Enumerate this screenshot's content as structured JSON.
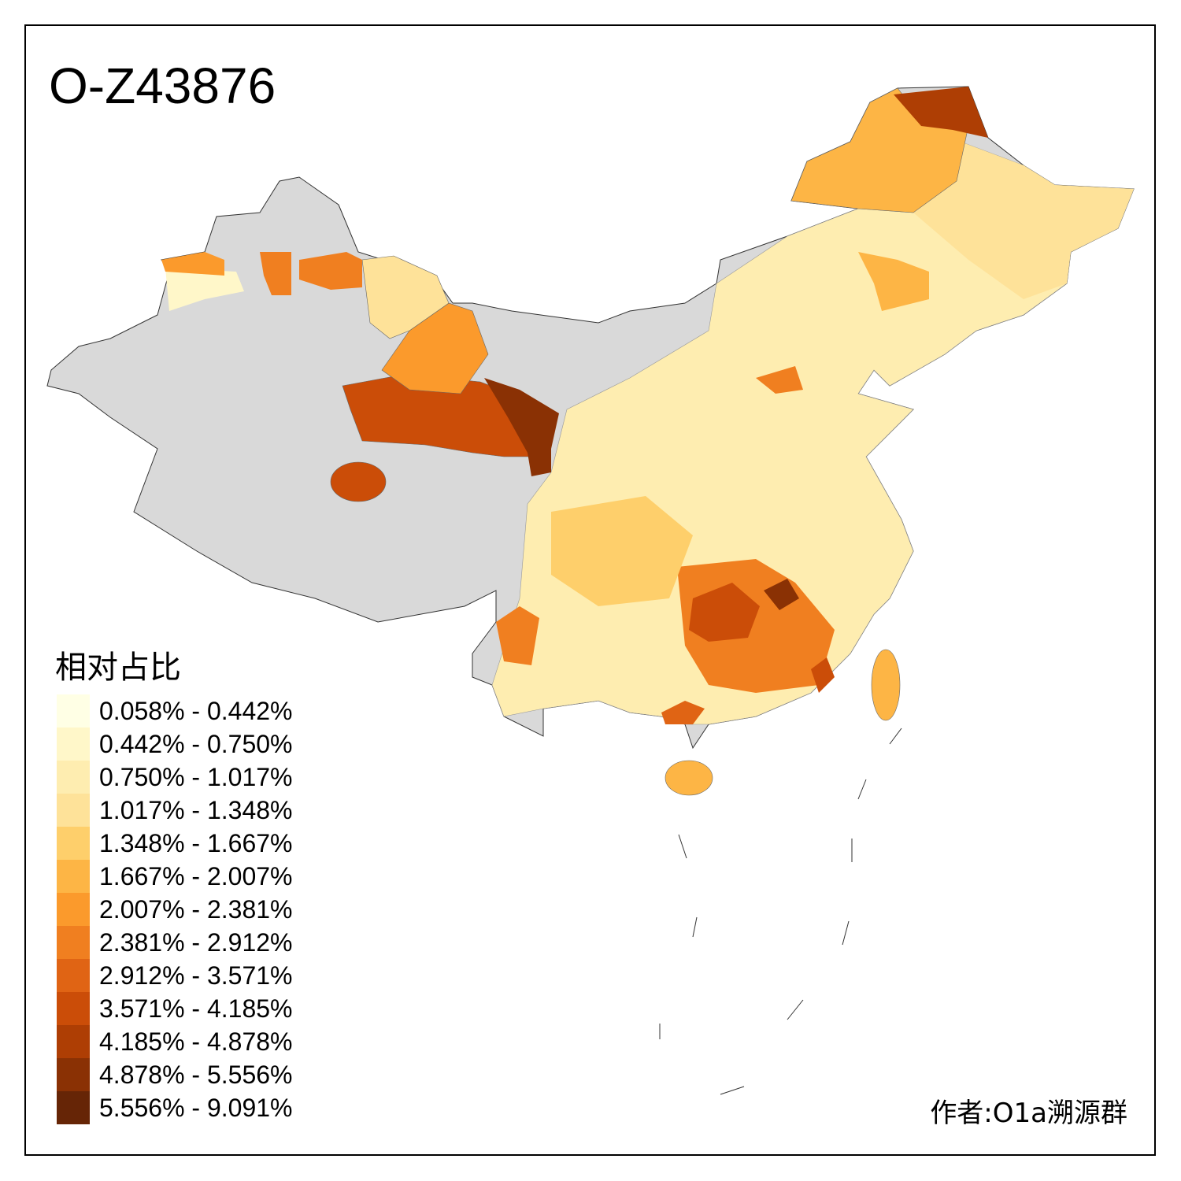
{
  "title": "O-Z43876",
  "legend": {
    "title": "相对占比",
    "items": [
      {
        "label": "0.058% - 0.442%",
        "color": "#FFFFE5"
      },
      {
        "label": "0.442% - 0.750%",
        "color": "#FFF7C9"
      },
      {
        "label": "0.750% - 1.017%",
        "color": "#FEEDB0"
      },
      {
        "label": "1.017% - 1.348%",
        "color": "#FEE299"
      },
      {
        "label": "1.348% - 1.667%",
        "color": "#FECF6B"
      },
      {
        "label": "1.667% - 2.007%",
        "color": "#FDB545"
      },
      {
        "label": "2.007% - 2.381%",
        "color": "#FB9A2C"
      },
      {
        "label": "2.381% - 2.912%",
        "color": "#F07F20"
      },
      {
        "label": "2.912% - 3.571%",
        "color": "#E06414"
      },
      {
        "label": "3.571% - 4.185%",
        "color": "#CB4D08"
      },
      {
        "label": "4.185% - 4.878%",
        "color": "#AE3E04"
      },
      {
        "label": "4.878% - 5.556%",
        "color": "#8A3104"
      },
      {
        "label": "5.556% - 9.091%",
        "color": "#662506"
      }
    ]
  },
  "no_data_color": "#D9D9D9",
  "author": "作者:O1a溯源群"
}
